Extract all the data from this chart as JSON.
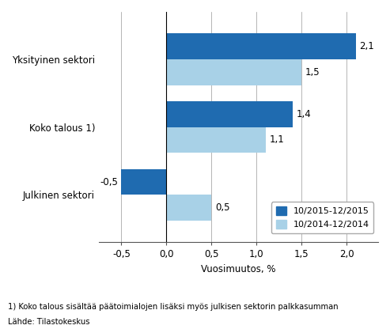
{
  "categories": [
    "Julkinen sektori",
    "Koko talous 1)",
    "Yksityinen sektori"
  ],
  "series_2015": [
    -0.5,
    1.4,
    2.1
  ],
  "series_2014": [
    0.5,
    1.1,
    1.5
  ],
  "color_2015": "#1F6BB0",
  "color_2014": "#A8D1E7",
  "legend_2015": "10/2015-12/2015",
  "legend_2014": "10/2014-12/2014",
  "xlabel": "Vuosimuutos, %",
  "xlim": [
    -0.75,
    2.35
  ],
  "xticks": [
    -0.5,
    0.0,
    0.5,
    1.0,
    1.5,
    2.0
  ],
  "xtick_labels": [
    "-0,5",
    "0,0",
    "0,5",
    "1,0",
    "1,5",
    "2,0"
  ],
  "footnote1": "1) Koko talous sisältää päätoimialojen lisäksi myös julkisen sektorin palkkasumman",
  "footnote2": "Lähde: Tilastokeskus",
  "bar_height": 0.38,
  "label_fontsize": 8.5,
  "tick_fontsize": 8.5,
  "category_fontsize": 8.5,
  "value_label_2015": [
    "-0,5",
    "1,4",
    "2,1"
  ],
  "value_label_2014": [
    "0,5",
    "1,1",
    "1,5"
  ]
}
